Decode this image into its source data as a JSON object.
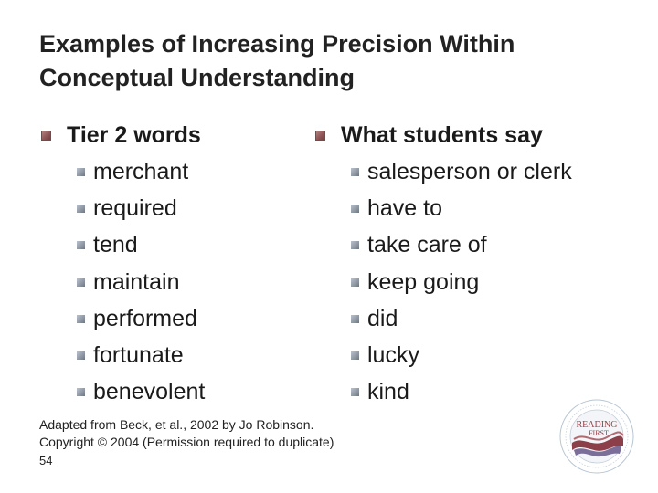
{
  "slide": {
    "title_line1": "Examples of Increasing Precision Within",
    "title_line2": "Conceptual Understanding"
  },
  "left_column": {
    "heading": "Tier 2 words",
    "items": [
      "merchant",
      "required",
      "tend",
      "maintain",
      "performed",
      "fortunate",
      "benevolent"
    ]
  },
  "right_column": {
    "heading": "What students say",
    "items": [
      "salesperson or clerk",
      "have to",
      "take care of",
      "keep going",
      "did",
      "lucky",
      "kind"
    ]
  },
  "footer": {
    "credit_line1": "Adapted from Beck, et al., 2002 by Jo Robinson.",
    "credit_line2": "Copyright © 2004  (Permission required to duplicate)",
    "page_number": "54"
  },
  "logo": {
    "name": "reading-first-seal",
    "text_main": "READING",
    "text_sub": "FIRST"
  }
}
